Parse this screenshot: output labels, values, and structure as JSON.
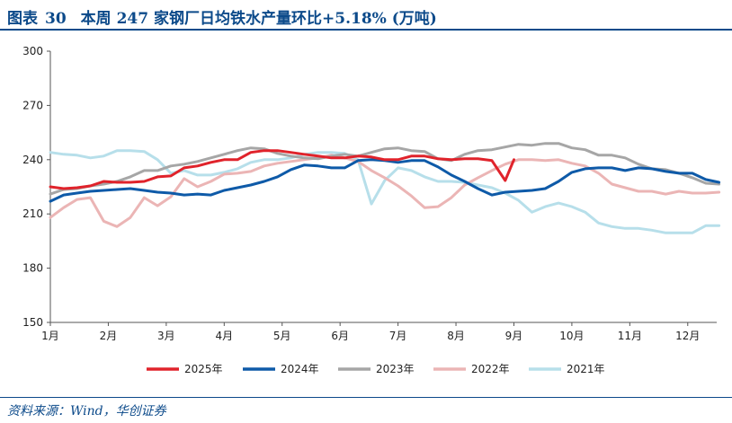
{
  "header": {
    "figure_label": "图表",
    "figure_number": "30",
    "title": "本周 247 家钢厂日均铁水产量环比+5.18% (万吨)"
  },
  "footer": {
    "source": "资料来源：Wind，华创证券"
  },
  "chart_data": {
    "type": "line",
    "title": "本周 247 家钢厂日均铁水产量环比+5.18% (万吨)",
    "xlabel": "",
    "ylabel": "",
    "ylim": [
      150,
      300
    ],
    "yticks": [
      150,
      180,
      210,
      240,
      270,
      300
    ],
    "xlim": [
      1,
      12.5
    ],
    "xticks": [
      {
        "value": 1,
        "label": "1月"
      },
      {
        "value": 2,
        "label": "2月"
      },
      {
        "value": 3,
        "label": "3月"
      },
      {
        "value": 4,
        "label": "4月"
      },
      {
        "value": 5,
        "label": "5月"
      },
      {
        "value": 6,
        "label": "6月"
      },
      {
        "value": 7,
        "label": "7月"
      },
      {
        "value": 8,
        "label": "8月"
      },
      {
        "value": 9,
        "label": "9月"
      },
      {
        "value": 10,
        "label": "10月"
      },
      {
        "value": 11,
        "label": "11月"
      },
      {
        "value": 12,
        "label": "12月"
      }
    ],
    "grid": false,
    "legend_position": "bottom",
    "series": [
      {
        "name": "2025年",
        "color": "#e0232b",
        "x": [
          1.0,
          1.23,
          1.46,
          1.69,
          1.92,
          2.15,
          2.38,
          2.62,
          2.85,
          3.08,
          3.31,
          3.54,
          3.77,
          4.0,
          4.23,
          4.46,
          4.69,
          4.92,
          5.15,
          5.38,
          5.62,
          5.85,
          6.08,
          6.31,
          6.54,
          6.77,
          7.0,
          7.23,
          7.46,
          7.69,
          7.92,
          8.15,
          8.38,
          8.62,
          8.85,
          9.0
        ],
        "y": [
          225,
          224,
          224.5,
          225.5,
          228,
          227.5,
          227.5,
          228,
          230.5,
          231,
          235.5,
          236.5,
          238.5,
          240,
          240,
          244,
          245,
          245,
          244,
          243,
          242,
          241,
          241,
          242,
          241.5,
          240,
          240,
          242,
          242,
          240.5,
          240,
          240.5,
          240.5,
          239.5,
          228.5,
          240
        ]
      },
      {
        "name": "2024年",
        "color": "#0e5aa8",
        "x": [
          1.0,
          1.23,
          1.46,
          1.69,
          1.92,
          2.15,
          2.38,
          2.62,
          2.85,
          3.08,
          3.31,
          3.54,
          3.77,
          4.0,
          4.23,
          4.46,
          4.69,
          4.92,
          5.15,
          5.38,
          5.62,
          5.85,
          6.08,
          6.31,
          6.54,
          6.77,
          7.0,
          7.23,
          7.46,
          7.69,
          7.92,
          8.15,
          8.38,
          8.62,
          8.85,
          9.08,
          9.31,
          9.54,
          9.77,
          10.0,
          10.23,
          10.46,
          10.69,
          10.92,
          11.15,
          11.38,
          11.62,
          11.85,
          12.08,
          12.31,
          12.54
        ],
        "y": [
          217,
          220.5,
          221.5,
          222.5,
          223,
          223.5,
          224,
          223,
          222,
          221.5,
          220.5,
          221,
          220.5,
          223,
          224.5,
          226,
          228,
          230.5,
          234.5,
          237,
          236.5,
          235.5,
          235.5,
          239.5,
          240,
          239.5,
          238.5,
          239.5,
          239.5,
          236,
          231.5,
          228,
          224,
          220.5,
          222,
          222.5,
          223,
          224,
          228,
          233,
          235,
          235.5,
          235.5,
          234,
          235.5,
          235,
          233.5,
          232.5,
          232.5,
          229,
          227.5
        ]
      },
      {
        "name": "2023年",
        "color": "#a6a6a6",
        "x": [
          1.0,
          1.23,
          1.46,
          1.69,
          1.92,
          2.15,
          2.38,
          2.62,
          2.85,
          3.08,
          3.31,
          3.54,
          3.77,
          4.0,
          4.23,
          4.46,
          4.69,
          4.92,
          5.15,
          5.38,
          5.62,
          5.85,
          6.08,
          6.31,
          6.54,
          6.77,
          7.0,
          7.23,
          7.46,
          7.69,
          7.92,
          8.15,
          8.38,
          8.62,
          8.85,
          9.08,
          9.31,
          9.54,
          9.77,
          10.0,
          10.23,
          10.46,
          10.69,
          10.92,
          11.15,
          11.38,
          11.62,
          11.85,
          12.08,
          12.31,
          12.54
        ],
        "y": [
          221,
          223.5,
          224,
          225.5,
          226.5,
          228,
          230.5,
          234,
          234,
          236.5,
          237.5,
          239,
          241,
          243,
          245,
          246.5,
          246,
          243.5,
          242,
          241,
          240.5,
          242,
          243,
          242,
          244,
          246,
          246.5,
          245,
          244.5,
          240.5,
          239.5,
          243,
          245,
          245.5,
          247,
          248.5,
          248,
          249,
          249,
          246.5,
          245.5,
          242.5,
          242.5,
          241,
          237.5,
          235,
          234.5,
          232.5,
          230,
          227,
          226.5
        ]
      },
      {
        "name": "2022年",
        "color": "#ebb5b5",
        "x": [
          1.0,
          1.23,
          1.46,
          1.69,
          1.92,
          2.15,
          2.38,
          2.62,
          2.85,
          3.08,
          3.31,
          3.54,
          3.77,
          4.0,
          4.23,
          4.46,
          4.69,
          4.92,
          5.15,
          5.38,
          5.62,
          5.85,
          6.08,
          6.31,
          6.54,
          6.77,
          7.0,
          7.23,
          7.46,
          7.69,
          7.92,
          8.15,
          8.38,
          8.62,
          8.85,
          9.08,
          9.31,
          9.54,
          9.77,
          10.0,
          10.23,
          10.46,
          10.69,
          10.92,
          11.15,
          11.38,
          11.62,
          11.85,
          12.08,
          12.31,
          12.54
        ],
        "y": [
          208,
          213.5,
          218,
          219,
          206,
          203,
          208,
          219,
          214.5,
          219.5,
          229.5,
          225,
          228,
          232,
          232.5,
          233.5,
          236.5,
          238,
          239,
          240,
          241,
          242.5,
          241,
          239,
          234,
          230,
          225.5,
          220,
          213.5,
          214,
          219,
          226,
          230,
          234,
          237.5,
          240,
          240,
          239.5,
          240,
          238,
          236.5,
          232.5,
          226.5,
          224.5,
          222.5,
          222.5,
          221,
          222.5,
          221.5,
          221.5,
          222
        ]
      },
      {
        "name": "2021年",
        "color": "#b7dfea",
        "x": [
          1.0,
          1.23,
          1.46,
          1.69,
          1.92,
          2.15,
          2.38,
          2.62,
          2.85,
          3.08,
          3.31,
          3.54,
          3.77,
          4.0,
          4.23,
          4.46,
          4.69,
          4.92,
          5.15,
          5.38,
          5.62,
          5.85,
          6.08,
          6.31,
          6.54,
          6.77,
          7.0,
          7.23,
          7.46,
          7.69,
          7.92,
          8.15,
          8.38,
          8.62,
          8.85,
          9.08,
          9.31,
          9.54,
          9.77,
          10.0,
          10.23,
          10.46,
          10.69,
          10.92,
          11.15,
          11.38,
          11.62,
          11.85,
          12.08,
          12.31,
          12.54
        ],
        "y": [
          244,
          243,
          242.5,
          241,
          242,
          245,
          245,
          244.5,
          240,
          232.5,
          234,
          231.5,
          231.5,
          233,
          235,
          238.5,
          240,
          240,
          241,
          243,
          244,
          244,
          243.5,
          240,
          215.5,
          228.5,
          235.5,
          234,
          230.5,
          228,
          228,
          227.5,
          226,
          224.5,
          221.5,
          217.5,
          211,
          214,
          216,
          214,
          211,
          205,
          203,
          202,
          202,
          201,
          199.5,
          199.5,
          199.5,
          203.5,
          203.5
        ]
      }
    ]
  }
}
